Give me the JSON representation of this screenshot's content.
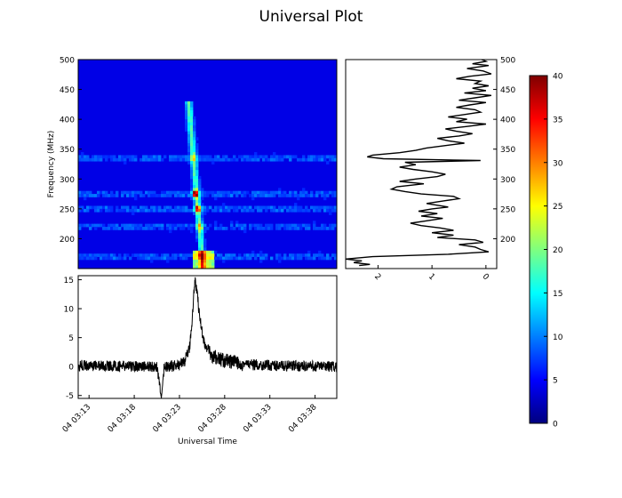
{
  "title": "Universal Plot",
  "chart_data": [
    {
      "panel": "spectrogram",
      "type": "heatmap",
      "ylabel": "Frequency (MHz)",
      "ylim": [
        150,
        500
      ],
      "yticks": [
        200,
        250,
        300,
        350,
        400,
        450,
        500
      ],
      "colormap": "jet",
      "color_range": [
        0,
        40
      ],
      "burst": {
        "start_time": "04 03:24",
        "peak_time": "04 03:24:30",
        "drift_from_mhz": 430,
        "drift_to_mhz": 155,
        "peak_value": 40,
        "peak_frequency_mhz": 275
      },
      "bright_bands_mhz": [
        335,
        275,
        250,
        220,
        170
      ]
    },
    {
      "panel": "frequency-profile",
      "type": "line",
      "xlim": [
        2.6,
        -0.2
      ],
      "xticks": [
        2,
        1,
        0
      ],
      "ylim": [
        150,
        500
      ],
      "yticks": [
        200,
        250,
        300,
        350,
        400,
        450,
        500
      ],
      "series": [
        {
          "points": [
            [
              0.08,
              500
            ],
            [
              0.0,
              497
            ],
            [
              0.25,
              493
            ],
            [
              -0.05,
              490
            ],
            [
              0.35,
              485
            ],
            [
              0.05,
              481
            ],
            [
              -0.1,
              476
            ],
            [
              0.3,
              472
            ],
            [
              0.55,
              468
            ],
            [
              0.1,
              464
            ],
            [
              0.2,
              460
            ],
            [
              -0.05,
              456
            ],
            [
              0.25,
              452
            ],
            [
              0.0,
              448
            ],
            [
              0.4,
              444
            ],
            [
              -0.1,
              440
            ],
            [
              0.2,
              436
            ],
            [
              0.5,
              432
            ],
            [
              0.0,
              428
            ],
            [
              0.3,
              424
            ],
            [
              0.55,
              420
            ],
            [
              0.2,
              416
            ],
            [
              0.1,
              412
            ],
            [
              0.4,
              408
            ],
            [
              0.7,
              404
            ],
            [
              0.35,
              400
            ],
            [
              0.55,
              396
            ],
            [
              0.0,
              392
            ],
            [
              0.35,
              388
            ],
            [
              0.75,
              384
            ],
            [
              0.55,
              380
            ],
            [
              0.25,
              376
            ],
            [
              0.5,
              372
            ],
            [
              0.9,
              368
            ],
            [
              0.7,
              364
            ],
            [
              0.4,
              360
            ],
            [
              0.75,
              356
            ],
            [
              1.1,
              352
            ],
            [
              1.3,
              348
            ],
            [
              1.6,
              344
            ],
            [
              2.1,
              340
            ],
            [
              2.2,
              337
            ],
            [
              1.9,
              334
            ],
            [
              0.1,
              331
            ],
            [
              1.5,
              328
            ],
            [
              1.3,
              324
            ],
            [
              1.6,
              320
            ],
            [
              1.35,
              316
            ],
            [
              1.0,
              312
            ],
            [
              0.75,
              308
            ],
            [
              0.9,
              304
            ],
            [
              1.3,
              300
            ],
            [
              1.6,
              296
            ],
            [
              1.15,
              292
            ],
            [
              1.65,
              287
            ],
            [
              1.75,
              283
            ],
            [
              1.5,
              279
            ],
            [
              1.2,
              275
            ],
            [
              0.6,
              271
            ],
            [
              0.5,
              267
            ],
            [
              0.8,
              263
            ],
            [
              1.1,
              259
            ],
            [
              0.9,
              256
            ],
            [
              0.7,
              253
            ],
            [
              1.0,
              250
            ],
            [
              1.25,
              246
            ],
            [
              0.9,
              242
            ],
            [
              1.2,
              238
            ],
            [
              0.8,
              234
            ],
            [
              1.1,
              230
            ],
            [
              1.4,
              226
            ],
            [
              1.2,
              222
            ],
            [
              0.85,
              218
            ],
            [
              0.6,
              214
            ],
            [
              1.0,
              210
            ],
            [
              0.6,
              206
            ],
            [
              0.9,
              202
            ],
            [
              0.2,
              198
            ],
            [
              0.05,
              194
            ],
            [
              0.5,
              190
            ],
            [
              0.2,
              186
            ],
            [
              0.1,
              182
            ],
            [
              -0.05,
              178
            ],
            [
              0.7,
              174
            ],
            [
              2.1,
              170
            ],
            [
              2.6,
              166
            ],
            [
              2.3,
              163
            ],
            [
              2.45,
              160
            ],
            [
              2.15,
              157
            ],
            [
              2.35,
              155
            ]
          ]
        }
      ]
    },
    {
      "panel": "light-curve",
      "type": "line",
      "xlabel": "Universal Time",
      "xticks": [
        "04 03:13",
        "04 03:18",
        "04 03:23",
        "04 03:28",
        "04 03:33",
        "04 03:38"
      ],
      "xlim_minutes": [
        11.8,
        40.4
      ],
      "ylim": [
        -5.5,
        15.7
      ],
      "yticks": [
        -5,
        0,
        5,
        10,
        15
      ],
      "series": [
        {
          "points": [
            [
              11.8,
              0.2
            ],
            [
              20.5,
              0.0
            ],
            [
              21.0,
              -5.5
            ],
            [
              21.3,
              -0.2
            ],
            [
              23.0,
              0.3
            ],
            [
              23.6,
              1.0
            ],
            [
              24.1,
              3.0
            ],
            [
              24.4,
              8.0
            ],
            [
              24.7,
              15.3
            ],
            [
              25.0,
              12.0
            ],
            [
              25.3,
              8.0
            ],
            [
              25.6,
              5.0
            ],
            [
              26.0,
              3.0
            ],
            [
              26.5,
              2.0
            ],
            [
              27.5,
              1.2
            ],
            [
              29.0,
              0.7
            ],
            [
              31.0,
              0.3
            ],
            [
              35.0,
              0.1
            ],
            [
              40.4,
              0.0
            ]
          ]
        }
      ]
    },
    {
      "panel": "colorbar",
      "type": "heatmap",
      "range": [
        0,
        40
      ],
      "ticks": [
        0,
        5,
        10,
        15,
        20,
        25,
        30,
        35,
        40
      ],
      "colors": [
        "#00007f",
        "#0000ff",
        "#007fff",
        "#00ffff",
        "#7fff7f",
        "#ffff00",
        "#ff7f00",
        "#ff0000",
        "#7f0000"
      ]
    }
  ]
}
